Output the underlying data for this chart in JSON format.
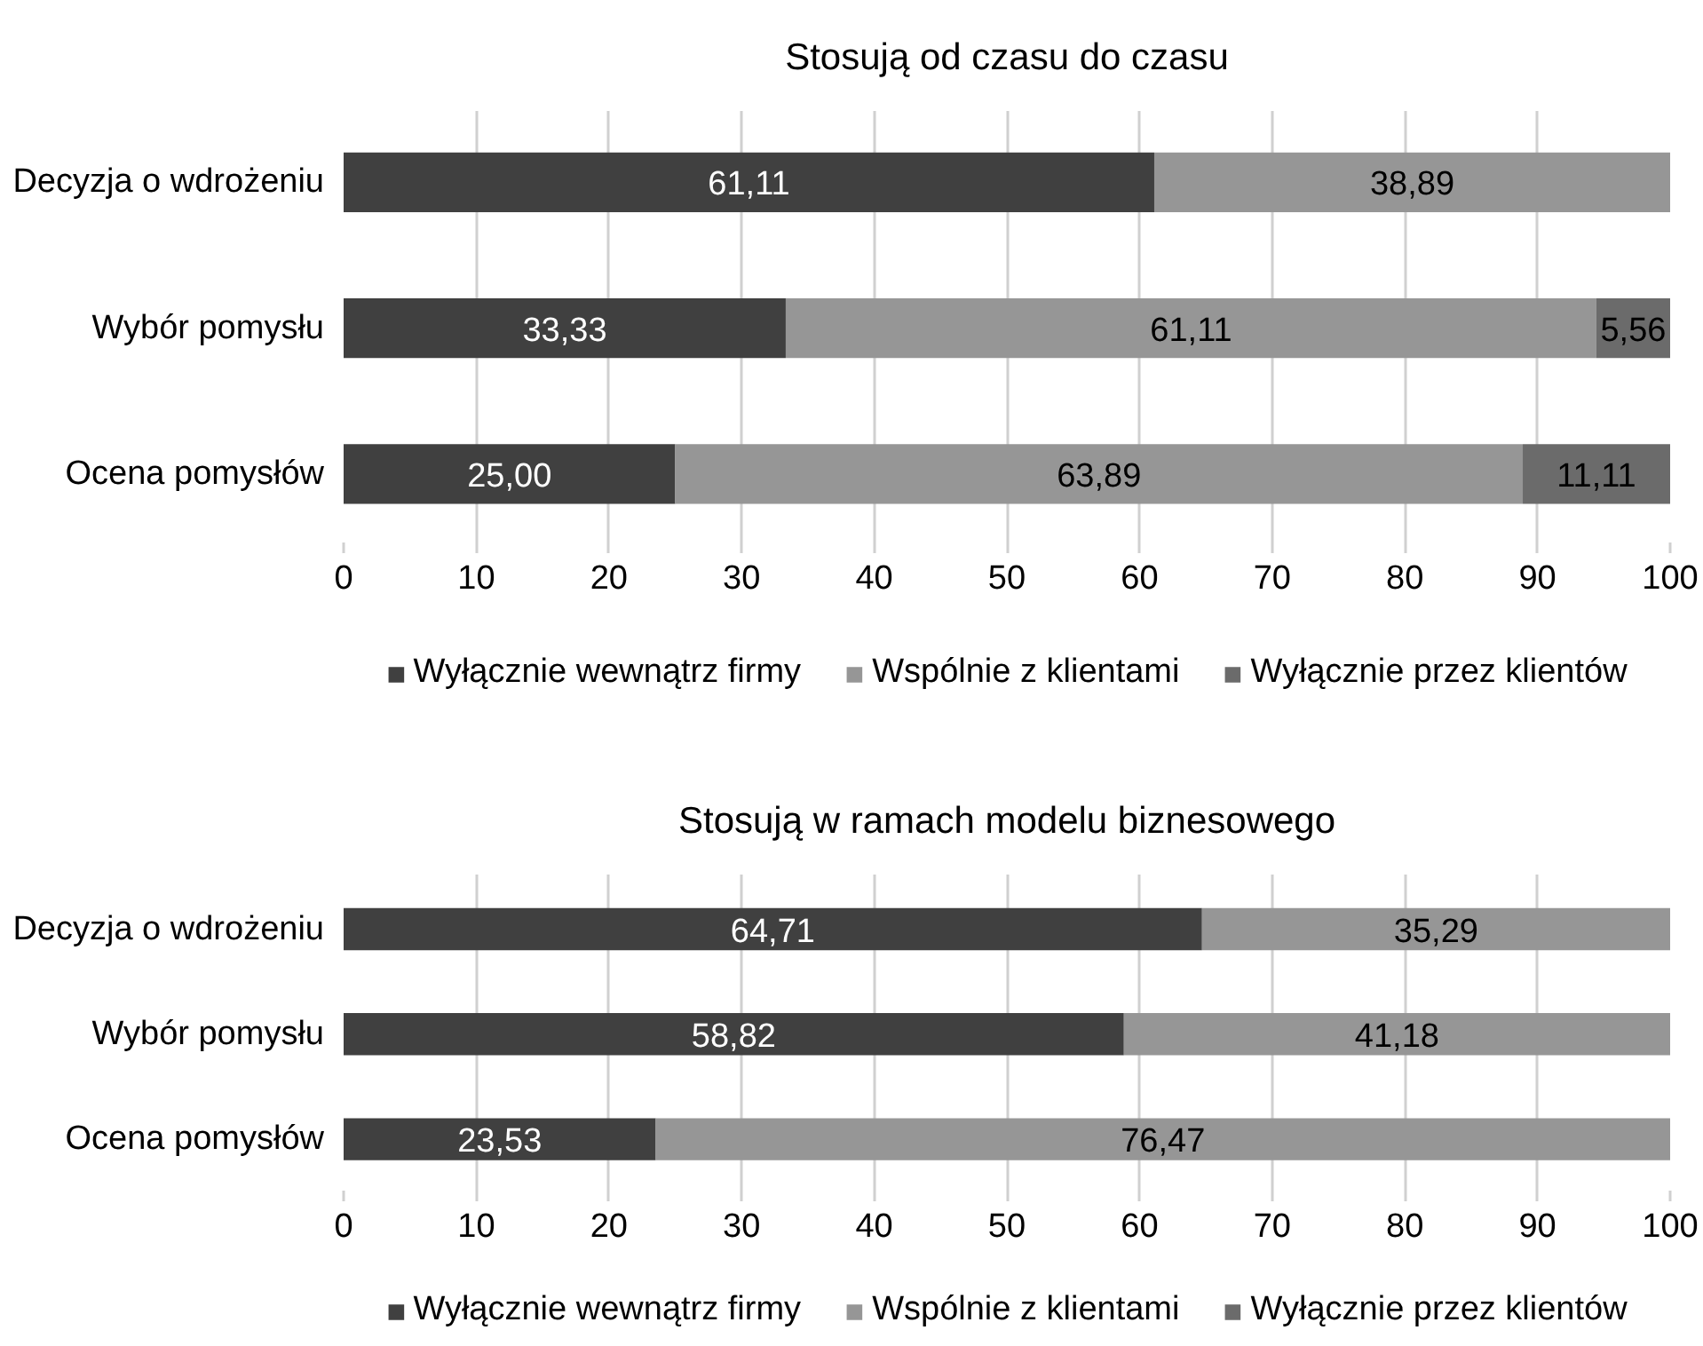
{
  "chart_data": [
    {
      "type": "bar",
      "orientation": "horizontal",
      "stacked": true,
      "title": "Stosują od czasu do czasu",
      "categories": [
        "Decyzja o wdrożeniu",
        "Wybór pomysłu",
        "Ocena pomysłów"
      ],
      "series": [
        {
          "name": "Wyłącznie wewnątrz firmy",
          "color": "#404040",
          "values": [
            61.11,
            33.33,
            25.0
          ],
          "value_labels": [
            "61,11",
            "33,33",
            "25,00"
          ]
        },
        {
          "name": "Wspólnie z klientami",
          "color": "#969696",
          "values": [
            38.89,
            61.11,
            63.89
          ],
          "value_labels": [
            "38,89",
            "61,11",
            "63,89"
          ]
        },
        {
          "name": "Wyłącznie przez klientów",
          "color": "#6b6b6b",
          "values": [
            null,
            5.56,
            11.11
          ],
          "value_labels": [
            null,
            "5,56",
            "11,11"
          ]
        }
      ],
      "xlim": [
        0,
        100
      ],
      "xticks": [
        0,
        10,
        20,
        30,
        40,
        50,
        60,
        70,
        80,
        90,
        100
      ],
      "grid": "x",
      "legend": "bottom"
    },
    {
      "type": "bar",
      "orientation": "horizontal",
      "stacked": true,
      "title": "Stosują w ramach modelu biznesowego",
      "categories": [
        "Decyzja o wdrożeniu",
        "Wybór pomysłu",
        "Ocena pomysłów"
      ],
      "series": [
        {
          "name": "Wyłącznie wewnątrz firmy",
          "color": "#404040",
          "values": [
            64.71,
            58.82,
            23.53
          ],
          "value_labels": [
            "64,71",
            "58,82",
            "23,53"
          ]
        },
        {
          "name": "Wspólnie z klientami",
          "color": "#969696",
          "values": [
            35.29,
            41.18,
            76.47
          ],
          "value_labels": [
            "35,29",
            "41,18",
            "76,47"
          ]
        },
        {
          "name": "Wyłącznie przez klientów",
          "color": "#6b6b6b",
          "values": [
            null,
            null,
            null
          ],
          "value_labels": [
            null,
            null,
            null
          ]
        }
      ],
      "xlim": [
        0,
        100
      ],
      "xticks": [
        0,
        10,
        20,
        30,
        40,
        50,
        60,
        70,
        80,
        90,
        100
      ],
      "grid": "x",
      "legend": "bottom"
    }
  ]
}
